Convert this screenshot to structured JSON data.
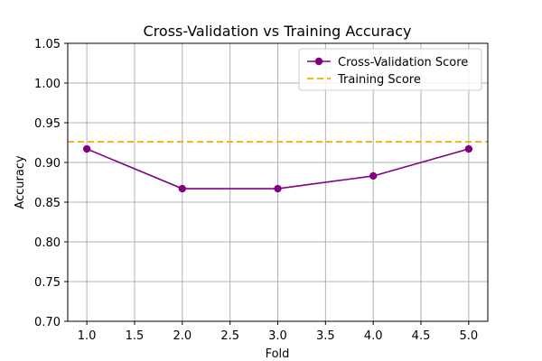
{
  "chart_data": {
    "type": "line",
    "title": "Cross-Validation vs Training Accuracy",
    "xlabel": "Fold",
    "ylabel": "Accuracy",
    "xlim": [
      0.8,
      5.2
    ],
    "ylim": [
      0.7,
      1.05
    ],
    "x_ticks": [
      1.0,
      1.5,
      2.0,
      2.5,
      3.0,
      3.5,
      4.0,
      4.5,
      5.0
    ],
    "x_tick_labels": [
      "1.0",
      "1.5",
      "2.0",
      "2.5",
      "3.0",
      "3.5",
      "4.0",
      "4.5",
      "5.0"
    ],
    "y_ticks": [
      0.7,
      0.75,
      0.8,
      0.85,
      0.9,
      0.95,
      1.0,
      1.05
    ],
    "y_tick_labels": [
      "0.70",
      "0.75",
      "0.80",
      "0.85",
      "0.90",
      "0.95",
      "1.00",
      "1.05"
    ],
    "grid": true,
    "legend_position": "top-right",
    "series": [
      {
        "name": "Cross-Validation Score",
        "style": "solid-line-with-markers",
        "color": "#800080",
        "x": [
          1,
          2,
          3,
          4,
          5
        ],
        "y": [
          0.917,
          0.867,
          0.867,
          0.883,
          0.917
        ]
      },
      {
        "name": "Training Score",
        "style": "dashed-horizontal-line",
        "color": "#ffa500",
        "y": 0.926
      }
    ]
  }
}
